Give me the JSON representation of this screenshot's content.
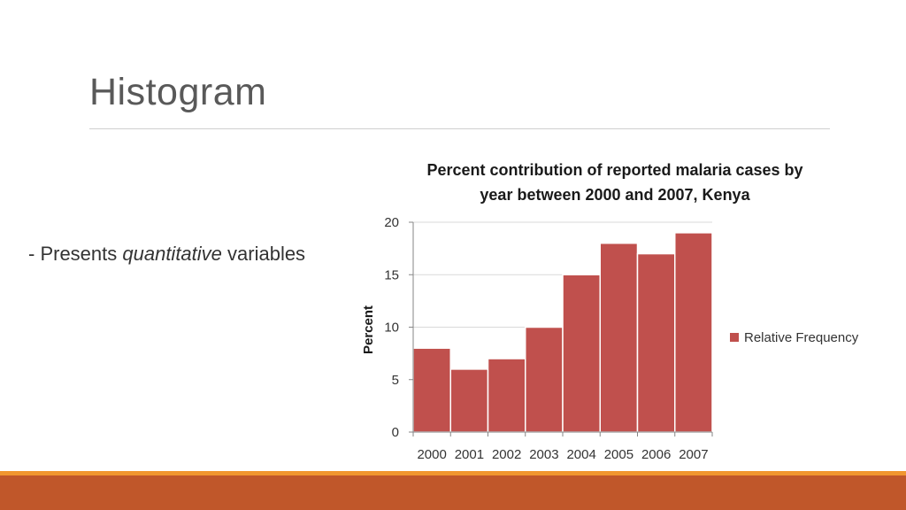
{
  "slide": {
    "title": "Histogram",
    "bullet_prefix": "- Presents ",
    "bullet_emphasis": "quantitative",
    "bullet_suffix": " variables"
  },
  "colors": {
    "bar_fill": "#c0504d",
    "footer_band": "#c0572a",
    "footer_accent": "#f1962f"
  },
  "chart_data": {
    "type": "bar",
    "title_line1": "Percent contribution of reported malaria cases by",
    "title_line2": "year between 2000 and 2007, Kenya",
    "ylabel": "Percent",
    "xlabel": "",
    "categories": [
      "2000",
      "2001",
      "2002",
      "2003",
      "2004",
      "2005",
      "2006",
      "2007"
    ],
    "series": [
      {
        "name": "Relative Frequency",
        "values": [
          8,
          6,
          7,
          10,
          15,
          18,
          17,
          19
        ]
      }
    ],
    "ylim": [
      0,
      20
    ],
    "yticks": [
      0,
      5,
      10,
      15,
      20
    ],
    "grid": true,
    "legend": "right"
  }
}
